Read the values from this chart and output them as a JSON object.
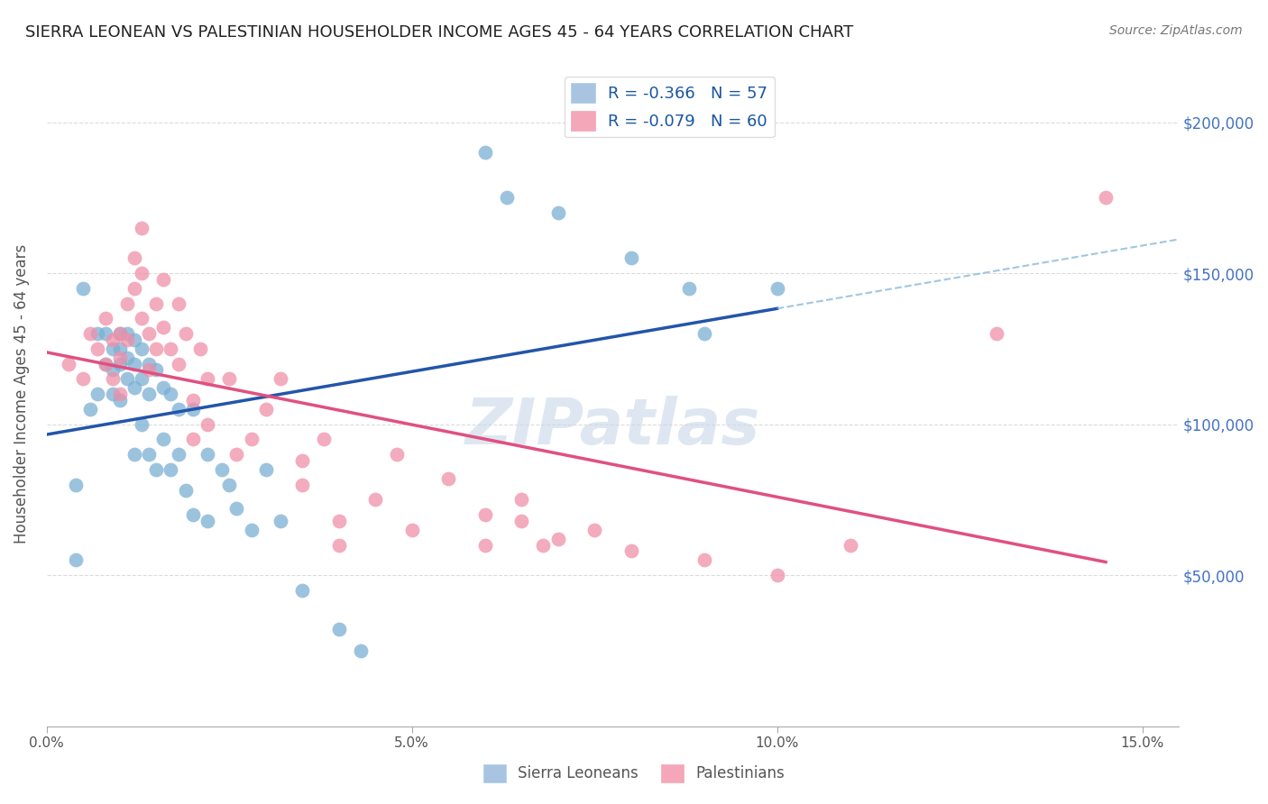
{
  "title": "SIERRA LEONEAN VS PALESTINIAN HOUSEHOLDER INCOME AGES 45 - 64 YEARS CORRELATION CHART",
  "source": "Source: ZipAtlas.com",
  "ylabel": "Householder Income Ages 45 - 64 years",
  "ytick_labels": [
    "$50,000",
    "$100,000",
    "$150,000",
    "$200,000"
  ],
  "ytick_values": [
    50000,
    100000,
    150000,
    200000
  ],
  "ylim": [
    0,
    220000
  ],
  "xlim": [
    0.0,
    0.155
  ],
  "legend_label1": "R = -0.366   N = 57",
  "legend_label2": "R = -0.079   N = 60",
  "legend_color1": "#a8c4e0",
  "legend_color2": "#f4a7b9",
  "scatter_color1": "#7bafd4",
  "scatter_color2": "#f08fa8",
  "line_color1": "#2255aa",
  "line_color2": "#e05080",
  "watermark": "ZIPatlas",
  "watermark_color": "#c8d8e8",
  "sl_x": [
    0.004,
    0.004,
    0.005,
    0.006,
    0.007,
    0.007,
    0.008,
    0.008,
    0.009,
    0.009,
    0.009,
    0.01,
    0.01,
    0.01,
    0.01,
    0.011,
    0.011,
    0.011,
    0.012,
    0.012,
    0.012,
    0.012,
    0.013,
    0.013,
    0.013,
    0.014,
    0.014,
    0.014,
    0.015,
    0.015,
    0.016,
    0.016,
    0.017,
    0.017,
    0.018,
    0.018,
    0.019,
    0.02,
    0.02,
    0.022,
    0.022,
    0.024,
    0.025,
    0.026,
    0.028,
    0.03,
    0.032,
    0.035,
    0.04,
    0.043,
    0.06,
    0.063,
    0.07,
    0.08,
    0.088,
    0.09,
    0.1
  ],
  "sl_y": [
    80000,
    55000,
    145000,
    105000,
    130000,
    110000,
    130000,
    120000,
    125000,
    118000,
    110000,
    130000,
    125000,
    120000,
    108000,
    130000,
    122000,
    115000,
    128000,
    120000,
    112000,
    90000,
    125000,
    115000,
    100000,
    120000,
    110000,
    90000,
    118000,
    85000,
    112000,
    95000,
    110000,
    85000,
    105000,
    90000,
    78000,
    105000,
    70000,
    90000,
    68000,
    85000,
    80000,
    72000,
    65000,
    85000,
    68000,
    45000,
    32000,
    25000,
    190000,
    175000,
    170000,
    155000,
    145000,
    130000,
    145000
  ],
  "pal_x": [
    0.003,
    0.005,
    0.006,
    0.007,
    0.008,
    0.008,
    0.009,
    0.009,
    0.01,
    0.01,
    0.01,
    0.011,
    0.011,
    0.012,
    0.012,
    0.013,
    0.013,
    0.013,
    0.014,
    0.014,
    0.015,
    0.015,
    0.016,
    0.016,
    0.017,
    0.018,
    0.018,
    0.019,
    0.02,
    0.02,
    0.021,
    0.022,
    0.022,
    0.025,
    0.026,
    0.028,
    0.03,
    0.032,
    0.035,
    0.035,
    0.038,
    0.04,
    0.04,
    0.045,
    0.048,
    0.05,
    0.055,
    0.06,
    0.06,
    0.065,
    0.065,
    0.068,
    0.07,
    0.075,
    0.08,
    0.09,
    0.1,
    0.11,
    0.13,
    0.145
  ],
  "pal_y": [
    120000,
    115000,
    130000,
    125000,
    135000,
    120000,
    128000,
    115000,
    130000,
    122000,
    110000,
    140000,
    128000,
    155000,
    145000,
    165000,
    150000,
    135000,
    130000,
    118000,
    140000,
    125000,
    148000,
    132000,
    125000,
    140000,
    120000,
    130000,
    108000,
    95000,
    125000,
    115000,
    100000,
    115000,
    90000,
    95000,
    105000,
    115000,
    88000,
    80000,
    95000,
    68000,
    60000,
    75000,
    90000,
    65000,
    82000,
    70000,
    60000,
    75000,
    68000,
    60000,
    62000,
    65000,
    58000,
    55000,
    50000,
    60000,
    130000,
    175000
  ]
}
